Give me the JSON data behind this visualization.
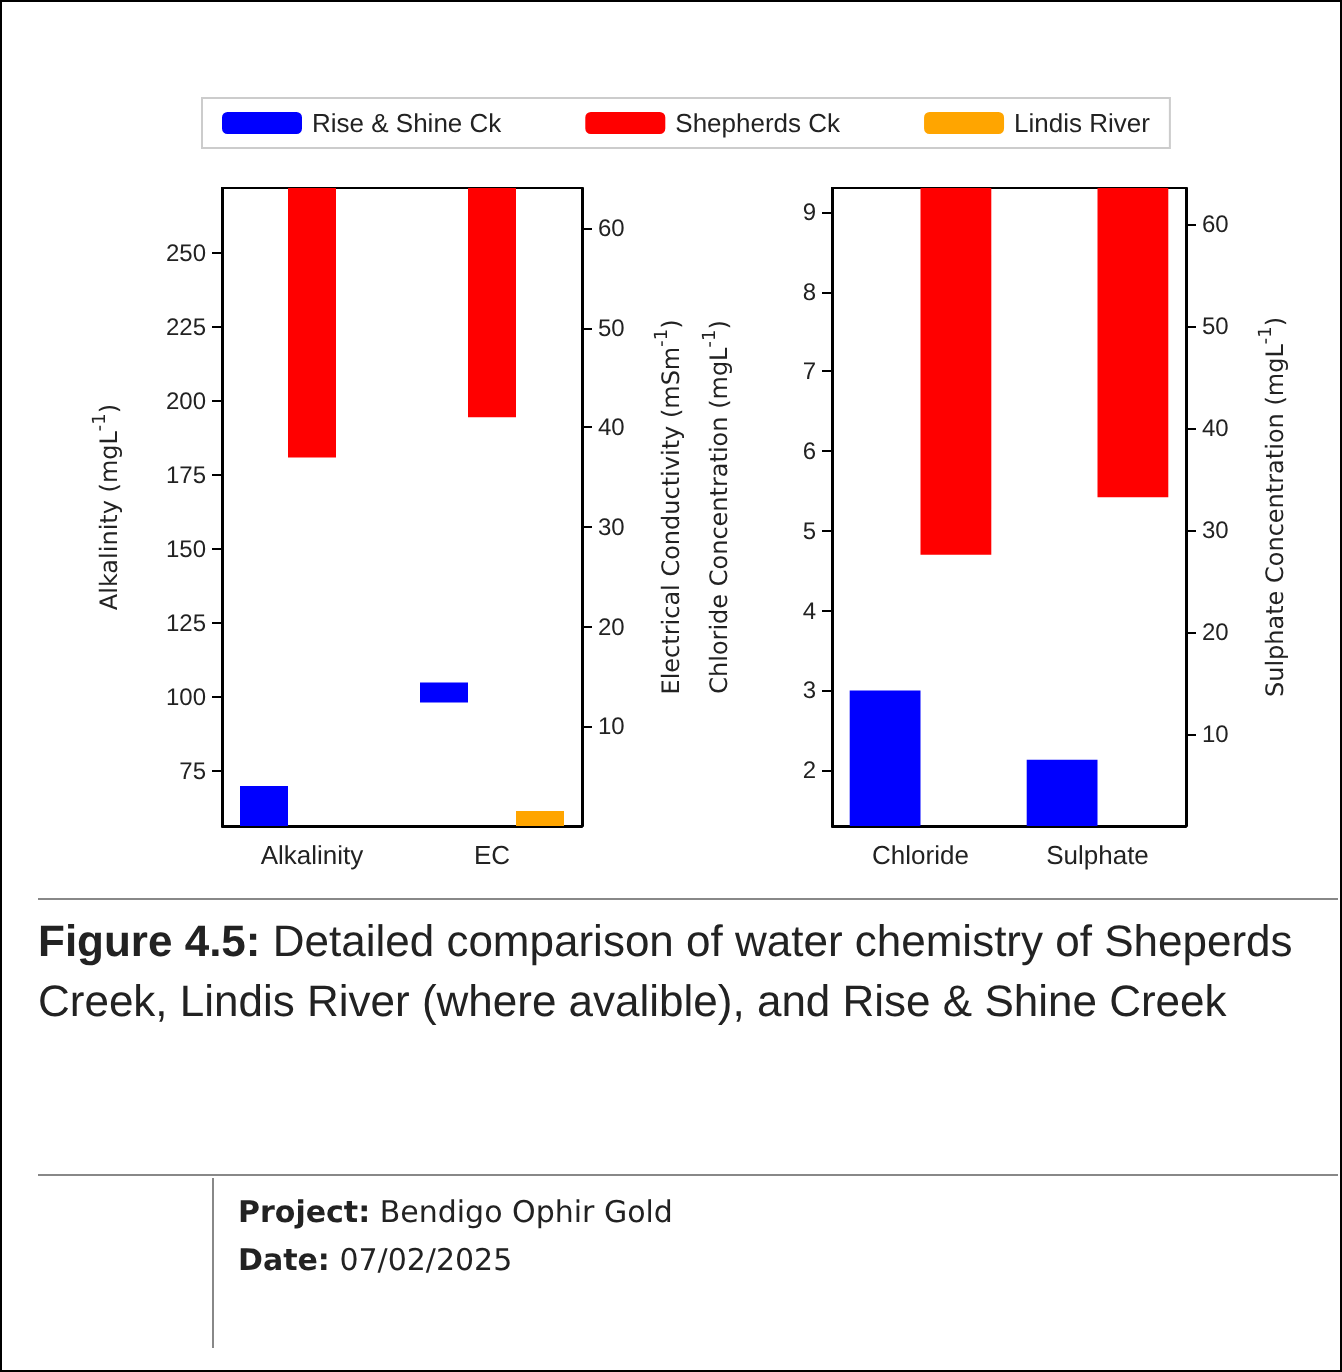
{
  "chart_data": [
    {
      "type": "bar",
      "categories": [
        "Alkalinity",
        "EC"
      ],
      "ylabel": "Alkalinity (mgL$^{-1}$)",
      "y2label": "Electrical Conductivity (mSm$^{-1}$)",
      "ylim": [
        56.5,
        272
      ],
      "yticks": [
        75,
        100,
        125,
        150,
        175,
        200,
        225,
        250
      ],
      "y2lim": [
        0,
        64
      ],
      "y2ticks": [
        10,
        20,
        30,
        40,
        50,
        60
      ],
      "legend": "top",
      "grid": false,
      "series": [
        {
          "name": "Rise & Shine Ck",
          "color": "#0000ff",
          "axis": "y",
          "values": [
            13.5,
            null
          ],
          "base": [
            56.5,
            null
          ]
        },
        {
          "name": "Shepherds Ck",
          "color": "#ff0000",
          "axis": "y",
          "values": [
            91,
            null
          ],
          "base": [
            181,
            null
          ]
        },
        {
          "color": "#0000ff",
          "axis": "y2",
          "values": [
            null,
            2
          ],
          "base": [
            null,
            12.4
          ]
        },
        {
          "color": "#ff0000",
          "axis": "y2",
          "values": [
            null,
            23
          ],
          "base": [
            null,
            41
          ]
        },
        {
          "name": "Lindis River",
          "color": "#ffa500",
          "axis": "y2",
          "values": [
            null,
            1.5
          ],
          "base": [
            null,
            0
          ]
        }
      ]
    },
    {
      "type": "bar",
      "categories": [
        "Chloride",
        "Sulphate"
      ],
      "ylabel": "Chloride Concentration (mgL$^{-1}$)",
      "y2label": "Sulphate Concentration (mgL$^{-1}$)",
      "ylim": [
        1.3,
        9.3
      ],
      "yticks": [
        2,
        3,
        4,
        5,
        6,
        7,
        8,
        9
      ],
      "y2lim": [
        1,
        63.5
      ],
      "y2ticks": [
        10,
        20,
        30,
        40,
        50,
        60
      ],
      "grid": false,
      "series": [
        {
          "color": "#0000ff",
          "axis": "y",
          "values": [
            1.7,
            null
          ],
          "base": [
            1.3,
            null
          ]
        },
        {
          "color": "#ff0000",
          "axis": "y",
          "values": [
            4.6,
            null
          ],
          "base": [
            4.7,
            null
          ]
        },
        {
          "color": "#0000ff",
          "axis": "y2",
          "values": [
            null,
            6.5
          ],
          "base": [
            null,
            1
          ]
        },
        {
          "color": "#ff0000",
          "axis": "y2",
          "values": [
            null,
            30.3
          ],
          "base": [
            null,
            33.2
          ]
        }
      ],
      "annotations": [
        "Figure 4.5: Detailed comparison of water chemistry of Sheperds Creek, Lindis River (where avalible), and Rise & Shine Creek",
        "Project: Bendigo Ophir Gold",
        "Date: 07/02/2025"
      ]
    }
  ]
}
